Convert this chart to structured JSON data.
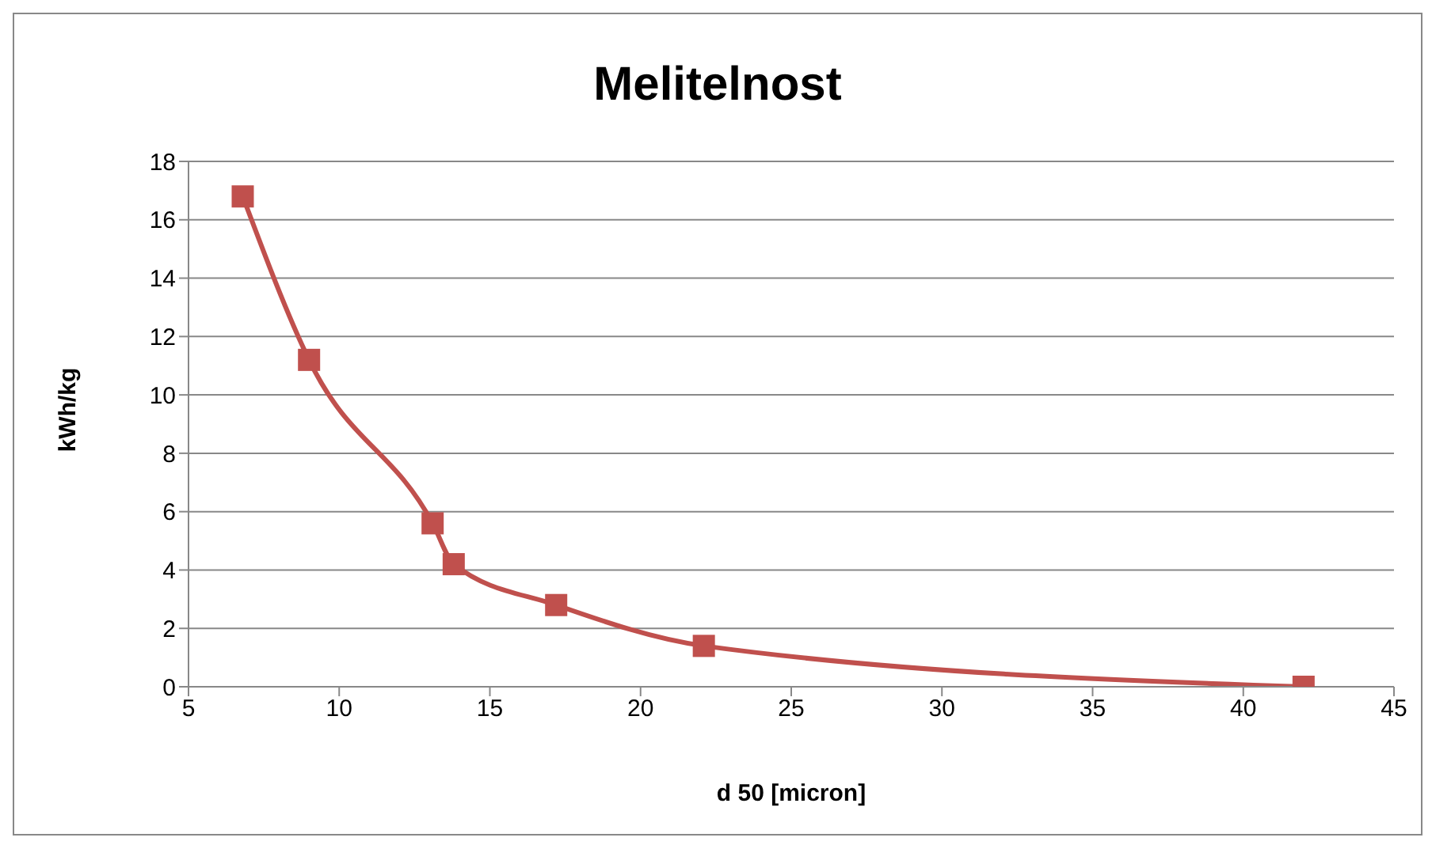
{
  "chart_data": {
    "type": "line",
    "title": "Melitelnost",
    "xlabel": "d 50 [micron]",
    "ylabel": "kWh/kg",
    "x": [
      6.8,
      9.0,
      13.1,
      13.8,
      17.2,
      22.1,
      42.0
    ],
    "series": [
      {
        "color": "#c0504d",
        "values": [
          16.8,
          11.2,
          5.6,
          4.2,
          2.8,
          1.4,
          0.0
        ]
      }
    ],
    "xlim": [
      5,
      45
    ],
    "xticks": [
      5,
      10,
      15,
      20,
      25,
      30,
      35,
      40,
      45
    ],
    "ylim": [
      0,
      18
    ],
    "yticks": [
      0,
      2,
      4,
      6,
      8,
      10,
      12,
      14,
      16,
      18
    ],
    "grid": "y",
    "marker": "square",
    "line_style": "solid",
    "legend": false
  }
}
